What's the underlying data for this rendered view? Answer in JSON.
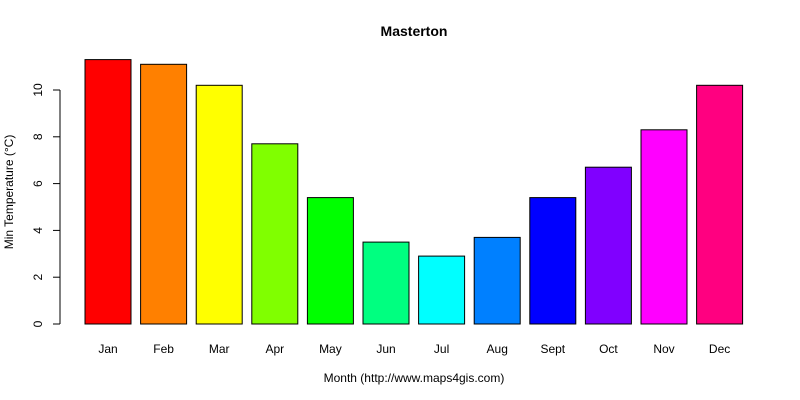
{
  "chart_data": {
    "type": "bar",
    "title": "Masterton",
    "xlabel": "Month (http://www.maps4gis.com)",
    "ylabel": "Min Temperature (°C)",
    "categories": [
      "Jan",
      "Feb",
      "Mar",
      "Apr",
      "May",
      "Jun",
      "Jul",
      "Aug",
      "Sept",
      "Oct",
      "Nov",
      "Dec"
    ],
    "values": [
      11.3,
      11.1,
      10.2,
      7.7,
      5.4,
      3.5,
      2.9,
      3.7,
      5.4,
      6.7,
      8.3,
      10.2
    ],
    "colors": [
      "#FF0000",
      "#FF8000",
      "#FFFF00",
      "#80FF00",
      "#00FF00",
      "#00FF80",
      "#00FFFF",
      "#0080FF",
      "#0000FF",
      "#8000FF",
      "#FF00FF",
      "#FF0080"
    ],
    "yticks": [
      0,
      2,
      4,
      6,
      8,
      10
    ],
    "ylim": [
      0,
      11.3
    ],
    "grid": false,
    "legend": "none"
  }
}
